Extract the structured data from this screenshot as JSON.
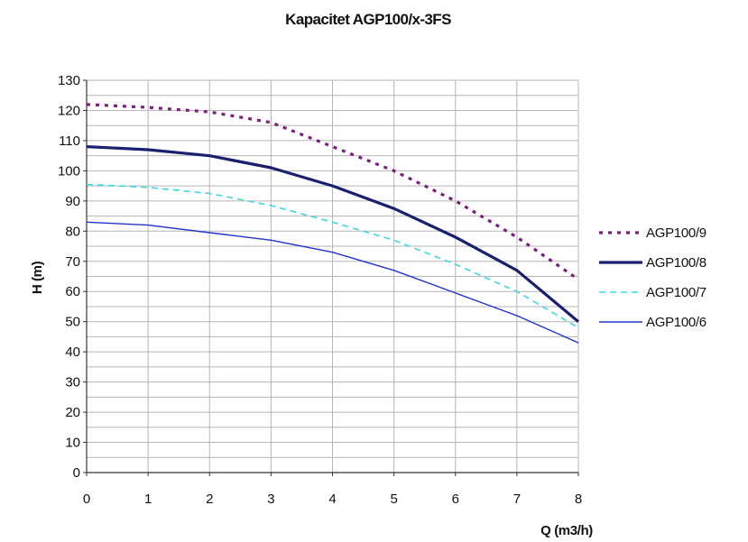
{
  "chart_data": {
    "type": "line",
    "title": "Kapacitet AGP100/x-3FS",
    "xlabel": "Q (m3/h)",
    "ylabel": "H (m)",
    "xlim": [
      0,
      8
    ],
    "ylim": [
      0,
      130
    ],
    "x_ticks": [
      0,
      1,
      2,
      3,
      4,
      5,
      6,
      7,
      8
    ],
    "y_ticks": [
      0,
      10,
      20,
      30,
      40,
      50,
      60,
      70,
      80,
      90,
      100,
      110,
      120,
      130
    ],
    "grid": true,
    "legend_position": "right",
    "x": [
      0,
      1,
      2,
      3,
      4,
      5,
      6,
      7,
      8
    ],
    "series": [
      {
        "name": "AGP100/9",
        "values": [
          122,
          121,
          119.5,
          116,
          108,
          100,
          90,
          78,
          64
        ],
        "color": "#7b1f7e",
        "style": "dotted"
      },
      {
        "name": "AGP100/8",
        "values": [
          108,
          107,
          105,
          101,
          95,
          87.5,
          78,
          67,
          50
        ],
        "color": "#1a1f6e",
        "style": "solid-thick"
      },
      {
        "name": "AGP100/7",
        "values": [
          95.5,
          94.5,
          92.5,
          88.5,
          83,
          77,
          69,
          60,
          48
        ],
        "color": "#3fd7e0",
        "style": "dashed"
      },
      {
        "name": "AGP100/6",
        "values": [
          83,
          82,
          79.5,
          77,
          73,
          67,
          59.5,
          52,
          43
        ],
        "color": "#2233cc",
        "style": "solid-thin"
      }
    ]
  }
}
